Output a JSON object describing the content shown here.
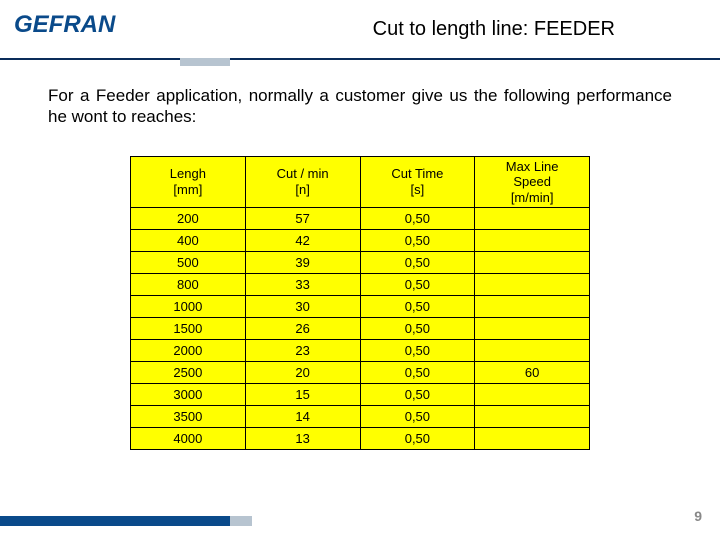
{
  "brand": {
    "name": "GEFRAN",
    "logo_color": "#0a4a8a"
  },
  "slide": {
    "title": "Cut to length line: FEEDER",
    "intro": "For a Feeder application, normally a customer give us the following performance he wont to reaches:",
    "page_number": "9"
  },
  "colors": {
    "table_bg": "#ffff00",
    "table_border": "#000000",
    "header_rule": "#0a2c5a",
    "accent_gray": "#b7c4d0",
    "footer_bar": "#0a4a8a",
    "page_num": "#888888"
  },
  "table": {
    "columns": [
      "Lengh\n[mm]",
      "Cut / min\n[n]",
      "Cut Time\n[s]",
      "Max Line\nSpeed\n[m/min]"
    ],
    "col_widths_pct": [
      25,
      25,
      25,
      25
    ],
    "rows": [
      [
        "200",
        "57",
        "0,50",
        ""
      ],
      [
        "400",
        "42",
        "0,50",
        ""
      ],
      [
        "500",
        "39",
        "0,50",
        ""
      ],
      [
        "800",
        "33",
        "0,50",
        ""
      ],
      [
        "1000",
        "30",
        "0,50",
        ""
      ],
      [
        "1500",
        "26",
        "0,50",
        ""
      ],
      [
        "2000",
        "23",
        "0,50",
        ""
      ],
      [
        "2500",
        "20",
        "0,50",
        "60"
      ],
      [
        "3000",
        "15",
        "0,50",
        ""
      ],
      [
        "3500",
        "14",
        "0,50",
        ""
      ],
      [
        "4000",
        "13",
        "0,50",
        ""
      ]
    ],
    "font_size_pt": 10
  }
}
